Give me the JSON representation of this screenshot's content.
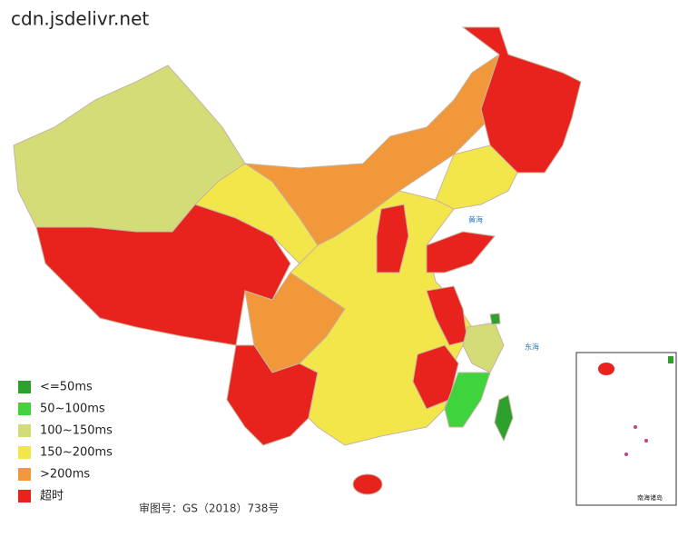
{
  "title": "cdn.jsdelivr.net",
  "legend": [
    {
      "label": "<=50ms",
      "color": "#2ea02e"
    },
    {
      "label": "50~100ms",
      "color": "#3fd43e"
    },
    {
      "label": "100~150ms",
      "color": "#d4dc78"
    },
    {
      "label": "150~200ms",
      "color": "#f2e64a"
    },
    {
      "label": ">200ms",
      "color": "#f0983a"
    },
    {
      "label": "超时",
      "color": "#e8231e"
    }
  ],
  "sea_labels": [
    "黄海",
    "东海",
    "南海诸岛"
  ],
  "footer": "审图号：GS（2018）738号"
}
